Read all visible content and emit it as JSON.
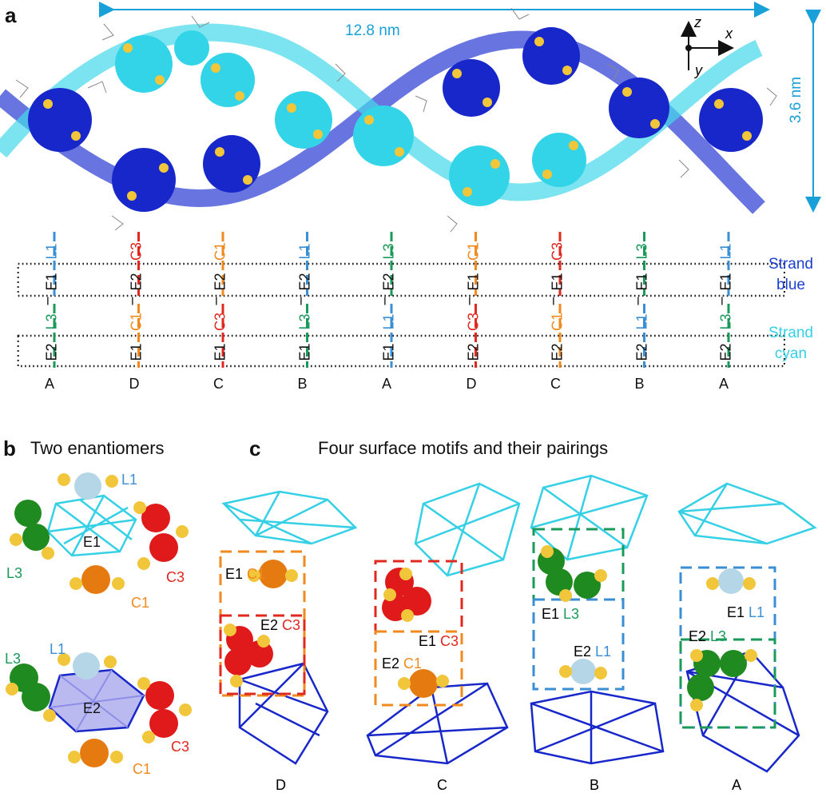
{
  "panels": {
    "a": {
      "letter": "a",
      "width_label": "12.8 nm",
      "height_label": "3.6 nm",
      "axes": {
        "z": "z",
        "x": "x",
        "y": "y"
      },
      "strand_blue": [
        "Strand",
        "blue"
      ],
      "strand_cyan": [
        "Strand",
        "cyan"
      ],
      "columns": [
        {
          "pair_top": {
            "top": "L1",
            "bottom": "L3"
          },
          "letter": "A"
        },
        {
          "pair_top": {
            "top": "C3",
            "bottom": "C1"
          },
          "letter": "D"
        },
        {
          "pair_top": {
            "top": "C1",
            "bottom": "C3"
          },
          "letter": "C"
        },
        {
          "pair_top": {
            "top": "L1",
            "bottom": "L3"
          },
          "letter": "B"
        },
        {
          "pair_top": {
            "top": "L3",
            "bottom": "L1"
          },
          "letter": "A"
        },
        {
          "pair_top": {
            "top": "C1",
            "bottom": "C3"
          },
          "letter": "D"
        },
        {
          "pair_top": {
            "top": "C3",
            "bottom": "C1"
          },
          "letter": "C"
        },
        {
          "pair_top": {
            "top": "L3",
            "bottom": "L1"
          },
          "letter": "B"
        },
        {
          "pair_top": {
            "top": "L1",
            "bottom": "L3"
          },
          "letter": "A"
        }
      ],
      "top_row_labels": [
        "E1",
        "E2",
        "E2",
        "E2",
        "E2",
        "E1",
        "E1",
        "E1",
        "E1"
      ],
      "bottom_row_labels": [
        "E2",
        "E1",
        "E1",
        "E1",
        "E1",
        "E2",
        "E2",
        "E2",
        "E2"
      ]
    },
    "b": {
      "letter": "b",
      "title": "Two enantiomers",
      "top": {
        "center": "E1",
        "L1": "L1",
        "L3": "L3",
        "C3": "C3",
        "C1": "C1"
      },
      "bottom": {
        "center": "E2",
        "L1": "L1",
        "L3": "L3",
        "C3": "C3",
        "C1": "C1"
      }
    },
    "c": {
      "letter": "c",
      "title": "Four surface motifs and their pairings",
      "motifs": [
        {
          "letter": "D",
          "upper": {
            "e": "E1",
            "m": "C1"
          },
          "lower": {
            "e": "E2",
            "m": "C3"
          }
        },
        {
          "letter": "C",
          "upper": {
            "e": "E1",
            "m": "C3"
          },
          "lower": {
            "e": "E2",
            "m": "C1"
          }
        },
        {
          "letter": "B",
          "upper": {
            "e": "E1",
            "m": "L3"
          },
          "lower": {
            "e": "E2",
            "m": "L1"
          }
        },
        {
          "letter": "A",
          "upper": {
            "e": "E1",
            "m": "L1"
          },
          "lower": {
            "e": "E2",
            "m": "L3"
          }
        }
      ]
    }
  },
  "colors": {
    "L1": "#3a8fd4",
    "L3": "#1a9a5a",
    "C1": "#f08a1e",
    "C3": "#e0281e",
    "strand_blue": "#1a3fd0",
    "strand_cyan": "#35d0e6",
    "dim": "#1aa0d8"
  }
}
